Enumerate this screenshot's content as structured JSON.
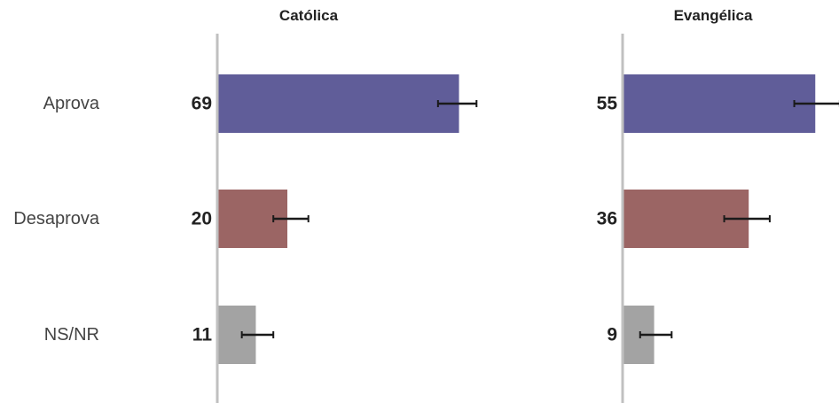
{
  "chart_data": {
    "type": "bar",
    "orientation": "horizontal",
    "categories": [
      "Aprova",
      "Desaprova",
      "NS/NR"
    ],
    "panels": [
      {
        "title": "Católica",
        "values": [
          69,
          20,
          11
        ],
        "error": [
          [
            63,
            74
          ],
          [
            16,
            26
          ],
          [
            7,
            16
          ]
        ]
      },
      {
        "title": "Evangélica",
        "values": [
          55,
          36,
          9
        ],
        "error": [
          [
            49,
            62
          ],
          [
            29,
            42
          ],
          [
            5,
            14
          ]
        ]
      }
    ],
    "colors": {
      "Aprova": "#605d99",
      "Desaprova": "#9b6564",
      "NS/NR": "#a3a3a3",
      "axis": "#c0c0c0",
      "errorbar": "#1a1a1a"
    },
    "xlim": [
      0,
      100
    ],
    "grid": false,
    "legend": "none"
  }
}
